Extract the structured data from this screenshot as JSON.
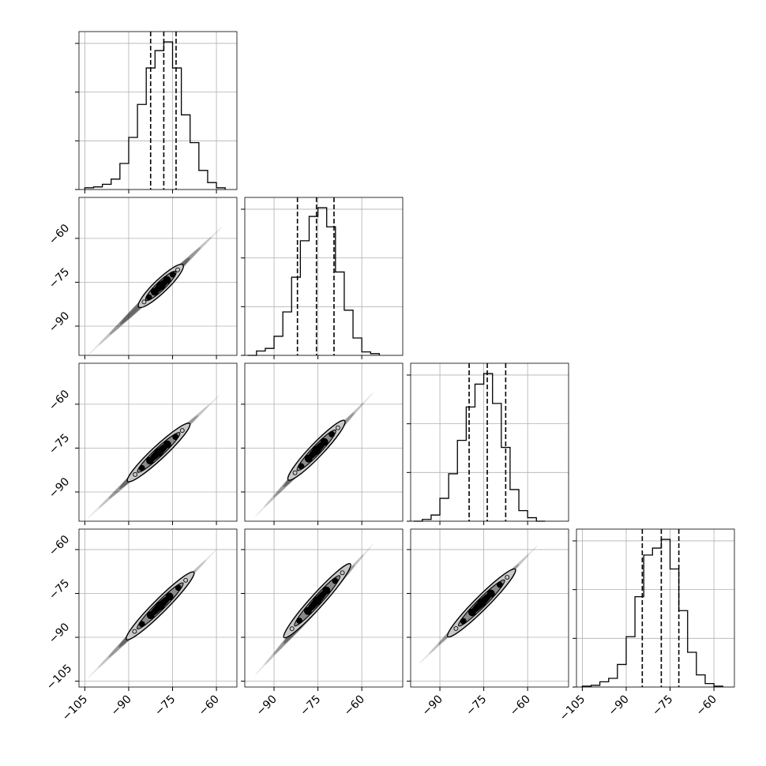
{
  "chart_data": {
    "type": "corner",
    "n_params": 4,
    "grid": true,
    "colors": {
      "line": "#000000",
      "grid": "#b0b0b0",
      "frame": "#000000",
      "contour_fill_inner": "#000000",
      "contour_fill_outer": "#c8c8c8",
      "scatter": "#000000"
    },
    "quantile_lines": "dashed",
    "parameters": [
      {
        "range": [
          -107,
          -53
        ],
        "quantiles": [
          -82.5,
          -78.0,
          -73.8
        ],
        "hist_bins": [
          -105,
          -102,
          -99,
          -96,
          -93,
          -90,
          -87,
          -84,
          -81,
          -78,
          -75,
          -72,
          -69,
          -66,
          -63,
          -60,
          -57
        ],
        "hist_counts": [
          0.01,
          0.015,
          0.03,
          0.06,
          0.15,
          0.3,
          0.49,
          0.7,
          0.8,
          0.85,
          0.7,
          0.43,
          0.27,
          0.11,
          0.04,
          0.01
        ],
        "tick_values": [
          -105,
          -90,
          -75,
          -60
        ],
        "tick_labels": [
          "−105",
          "−90",
          "−75",
          "−60"
        ]
      },
      {
        "range": [
          -100,
          -46
        ],
        "quantiles": [
          -82.0,
          -75.5,
          -69.5
        ],
        "hist_bins": [
          -99,
          -96,
          -93,
          -90,
          -87,
          -84,
          -81,
          -78,
          -75,
          -72,
          -69,
          -66,
          -63,
          -60,
          -57,
          -54
        ],
        "hist_counts": [
          0.0,
          0.025,
          0.04,
          0.11,
          0.25,
          0.45,
          0.66,
          0.8,
          0.85,
          0.74,
          0.48,
          0.26,
          0.1,
          0.02,
          0.01
        ],
        "tick_values": [
          -90,
          -75,
          -60
        ],
        "tick_labels": [
          "−90",
          "−75",
          "−60"
        ]
      },
      {
        "range": [
          -100,
          -46
        ],
        "quantiles": [
          -80.0,
          -73.8,
          -67.5
        ],
        "hist_bins": [
          -99,
          -96,
          -93,
          -90,
          -87,
          -84,
          -81,
          -78,
          -75,
          -72,
          -69,
          -66,
          -63,
          -60,
          -57,
          -54
        ],
        "hist_counts": [
          0.0,
          0.01,
          0.035,
          0.13,
          0.27,
          0.46,
          0.65,
          0.78,
          0.84,
          0.67,
          0.42,
          0.18,
          0.06,
          0.02,
          0.0
        ],
        "tick_values": [
          -90,
          -75,
          -60
        ],
        "tick_labels": [
          "−90",
          "−75",
          "−60"
        ]
      },
      {
        "range": [
          -107,
          -53
        ],
        "quantiles": [
          -84.5,
          -78.0,
          -72.0
        ],
        "hist_bins": [
          -105,
          -102,
          -99,
          -96,
          -93,
          -90,
          -87,
          -84,
          -81,
          -78,
          -75,
          -72,
          -69,
          -66,
          -63,
          -60,
          -57
        ],
        "hist_counts": [
          0.005,
          0.01,
          0.03,
          0.05,
          0.13,
          0.29,
          0.52,
          0.76,
          0.8,
          0.85,
          0.68,
          0.44,
          0.2,
          0.07,
          0.02,
          0.005
        ],
        "tick_values": [
          -105,
          -90,
          -75,
          -60
        ],
        "tick_labels": [
          "−105",
          "−90",
          "−75",
          "−60"
        ]
      }
    ],
    "pair_panels": [
      {
        "x": 0,
        "y": 1,
        "center": [
          -79.5,
          -78.0
        ],
        "scatter_extent": [
          [
            -104,
            -100
          ],
          [
            -58,
            -56
          ]
        ],
        "contour_extent": [
          [
            -86,
            -84
          ],
          [
            -72,
            -68.5
          ]
        ]
      },
      {
        "x": 0,
        "y": 2,
        "center": [
          -79.5,
          -76.5
        ],
        "scatter_extent": [
          [
            -104,
            -99
          ],
          [
            -59,
            -57
          ]
        ],
        "contour_extent": [
          [
            -91.5,
            -85
          ],
          [
            -68,
            -68
          ]
        ]
      },
      {
        "x": 1,
        "y": 2,
        "center": [
          -75.0,
          -75.5
        ],
        "scatter_extent": [
          [
            -96.5,
            -98.5
          ],
          [
            -56,
            -56
          ]
        ],
        "contour_extent": [
          [
            -86,
            -85
          ],
          [
            -65,
            -66.5
          ]
        ]
      },
      {
        "x": 0,
        "y": 3,
        "center": [
          -79.0,
          -79.0
        ],
        "scatter_extent": [
          [
            -104,
            -104
          ],
          [
            -60,
            -60
          ]
        ],
        "contour_extent": [
          [
            -90.5,
            -91
          ],
          [
            -68,
            -67.5
          ]
        ]
      },
      {
        "x": 1,
        "y": 3,
        "center": [
          -76.0,
          -78.0
        ],
        "scatter_extent": [
          [
            -96.5,
            -103
          ],
          [
            -56,
            -58
          ]
        ],
        "contour_extent": [
          [
            -85.5,
            -91
          ],
          [
            -65,
            -64
          ]
        ]
      },
      {
        "x": 2,
        "y": 3,
        "center": [
          -76.0,
          -78.0
        ],
        "scatter_extent": [
          [
            -97,
            -99
          ],
          [
            -56.5,
            -58.5
          ]
        ],
        "contour_extent": [
          [
            -86.5,
            -90.5
          ],
          [
            -65,
            -66
          ]
        ]
      }
    ]
  }
}
